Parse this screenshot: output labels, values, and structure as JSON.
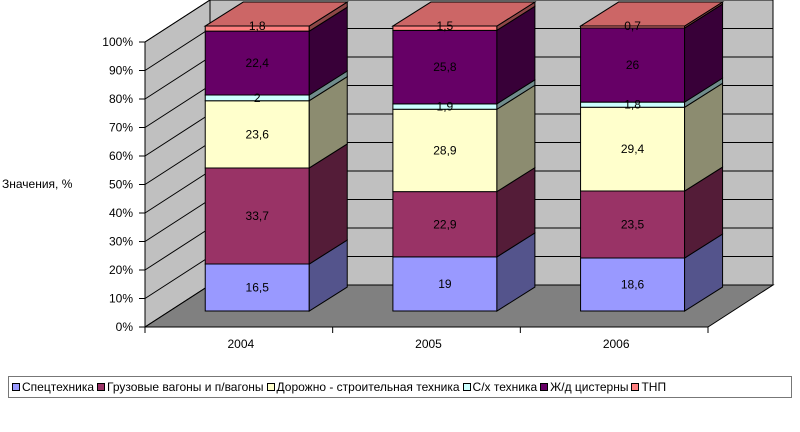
{
  "chart_data": {
    "type": "bar",
    "stacked": true,
    "three_d": true,
    "ylabel": "Значения, %",
    "ylim": [
      0,
      100
    ],
    "yticks": [
      "0%",
      "10%",
      "20%",
      "30%",
      "40%",
      "50%",
      "60%",
      "70%",
      "80%",
      "90%",
      "100%"
    ],
    "categories": [
      "2004",
      "2005",
      "2006"
    ],
    "series": [
      {
        "name": "Спецтехника",
        "color": "#9999ff",
        "values": [
          16.5,
          19,
          18.6
        ],
        "labels": [
          "16,5",
          "19",
          "18,6"
        ]
      },
      {
        "name": "Грузовые вагоны и п/вагоны",
        "color": "#993366",
        "values": [
          33.7,
          22.9,
          23.5
        ],
        "labels": [
          "33,7",
          "22,9",
          "23,5"
        ]
      },
      {
        "name": "Дорожно - строительная техника",
        "color": "#ffffcc",
        "values": [
          23.6,
          28.9,
          29.4
        ],
        "labels": [
          "23,6",
          "28,9",
          "29,4"
        ]
      },
      {
        "name": "С/х техника",
        "color": "#ccffff",
        "values": [
          2,
          1.9,
          1.8
        ],
        "labels": [
          "2",
          "1,9",
          "1,8"
        ]
      },
      {
        "name": "Ж/д цистерны",
        "color": "#660066",
        "values": [
          22.4,
          25.8,
          26
        ],
        "labels": [
          "22,4",
          "25,8",
          "26"
        ]
      },
      {
        "name": "ТНП",
        "color": "#ff8080",
        "values": [
          1.8,
          1.5,
          0.7
        ],
        "labels": [
          "1,8",
          "1,5",
          "0,7"
        ]
      }
    ],
    "legend_position": "bottom",
    "grid": true
  }
}
